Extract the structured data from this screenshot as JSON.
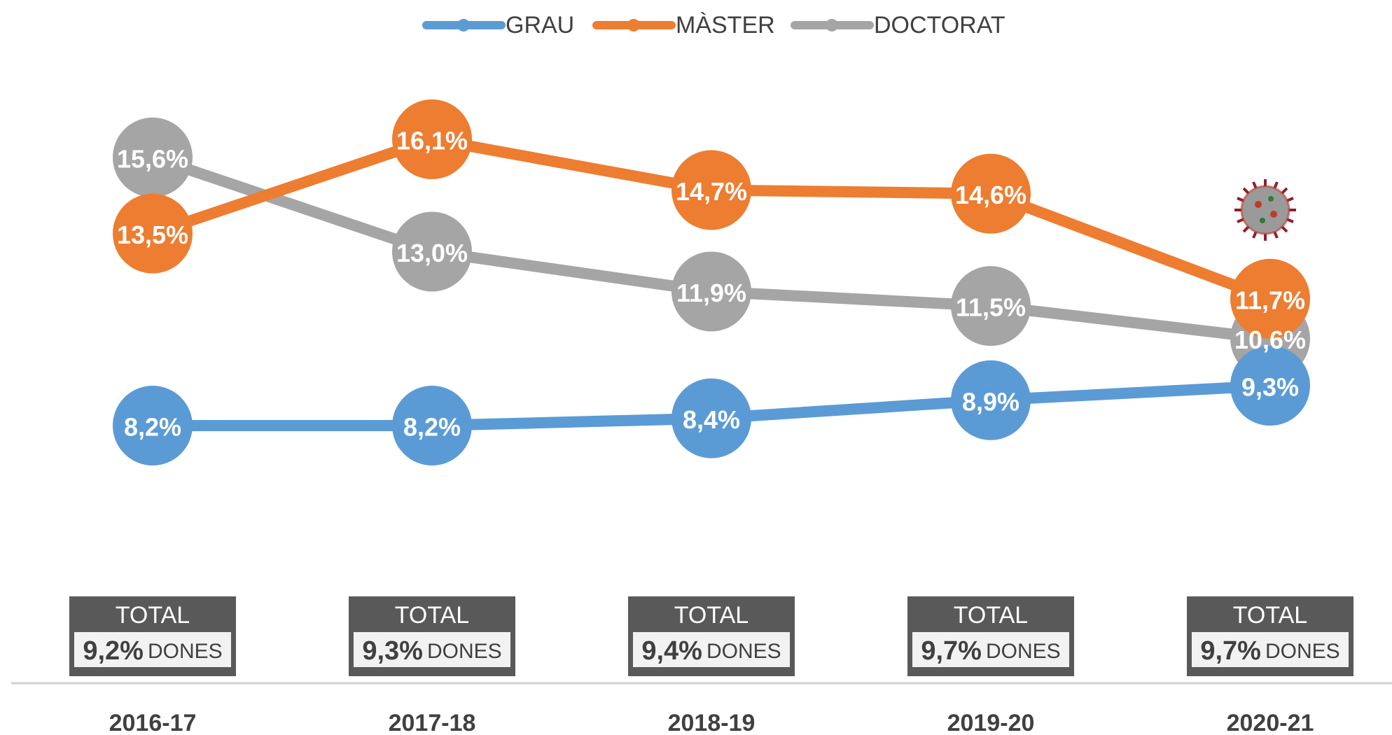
{
  "chart_data": {
    "type": "line",
    "categories": [
      "2016-17",
      "2017-18",
      "2018-19",
      "2019-20",
      "2020-21"
    ],
    "series": [
      {
        "name": "GRAU",
        "color": "#5b9bd5",
        "values": [
          8.2,
          8.2,
          8.4,
          8.9,
          9.3
        ],
        "value_labels": [
          "8,2%",
          "8,2%",
          "8,4%",
          "8,9%",
          "9,3%"
        ]
      },
      {
        "name": "MÀSTER",
        "color": "#ed7d31",
        "values": [
          13.5,
          16.1,
          14.7,
          14.6,
          11.7
        ],
        "value_labels": [
          "13,5%",
          "16,1%",
          "14,7%",
          "14,6%",
          "11,7%"
        ]
      },
      {
        "name": "DOCTORAT",
        "color": "#a5a5a5",
        "values": [
          15.6,
          13.0,
          11.9,
          11.5,
          10.6
        ],
        "value_labels": [
          "15,6%",
          "13,0%",
          "11,9%",
          "11,5%",
          "10,6%"
        ]
      }
    ],
    "totals": {
      "label": "TOTAL",
      "unit": "DONES",
      "values": [
        "9,2%",
        "9,3%",
        "9,4%",
        "9,7%",
        "9,7%"
      ]
    }
  }
}
